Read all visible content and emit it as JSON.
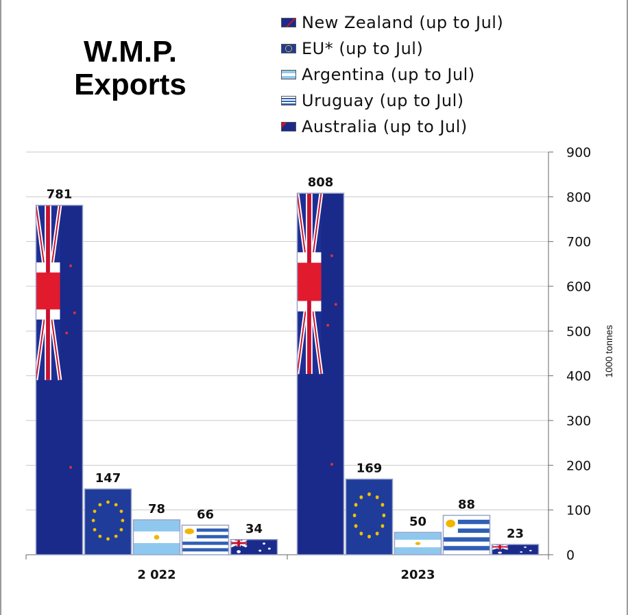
{
  "chart_data": {
    "type": "bar",
    "title_lines": [
      "W.M.P.",
      "Exports"
    ],
    "categories": [
      "2 022",
      "2023"
    ],
    "series": [
      {
        "name": "New Zealand (up to Jul)",
        "values": [
          781,
          808
        ],
        "pattern": "nz-flag",
        "color": "#1a2a8a"
      },
      {
        "name": "EU* (up to Jul)",
        "values": [
          147,
          169
        ],
        "pattern": "eu-flag",
        "color": "#1f3c9a"
      },
      {
        "name": "Argentina (up to Jul)",
        "values": [
          78,
          50
        ],
        "pattern": "argentina-flag",
        "color": "#9fd0ef"
      },
      {
        "name": "Uruguay (up to Jul)",
        "values": [
          66,
          88
        ],
        "pattern": "uruguay-flag",
        "color": "#2f5fb5"
      },
      {
        "name": "Australia (up to Jul)",
        "values": [
          34,
          23
        ],
        "pattern": "australia-flag",
        "color": "#1b2b8c"
      }
    ],
    "data_labels": [
      [
        "781",
        "147",
        "78",
        "66",
        "34"
      ],
      [
        "808",
        "169",
        "50",
        "88",
        "23"
      ]
    ],
    "ylabel": "1000 tonnes",
    "ylim": [
      0,
      900
    ],
    "yticks": [
      "0",
      "100",
      "200",
      "300",
      "400",
      "500",
      "600",
      "700",
      "800",
      "900"
    ],
    "y_axis_side": "right",
    "grid": true,
    "legend_position": "top-right"
  }
}
